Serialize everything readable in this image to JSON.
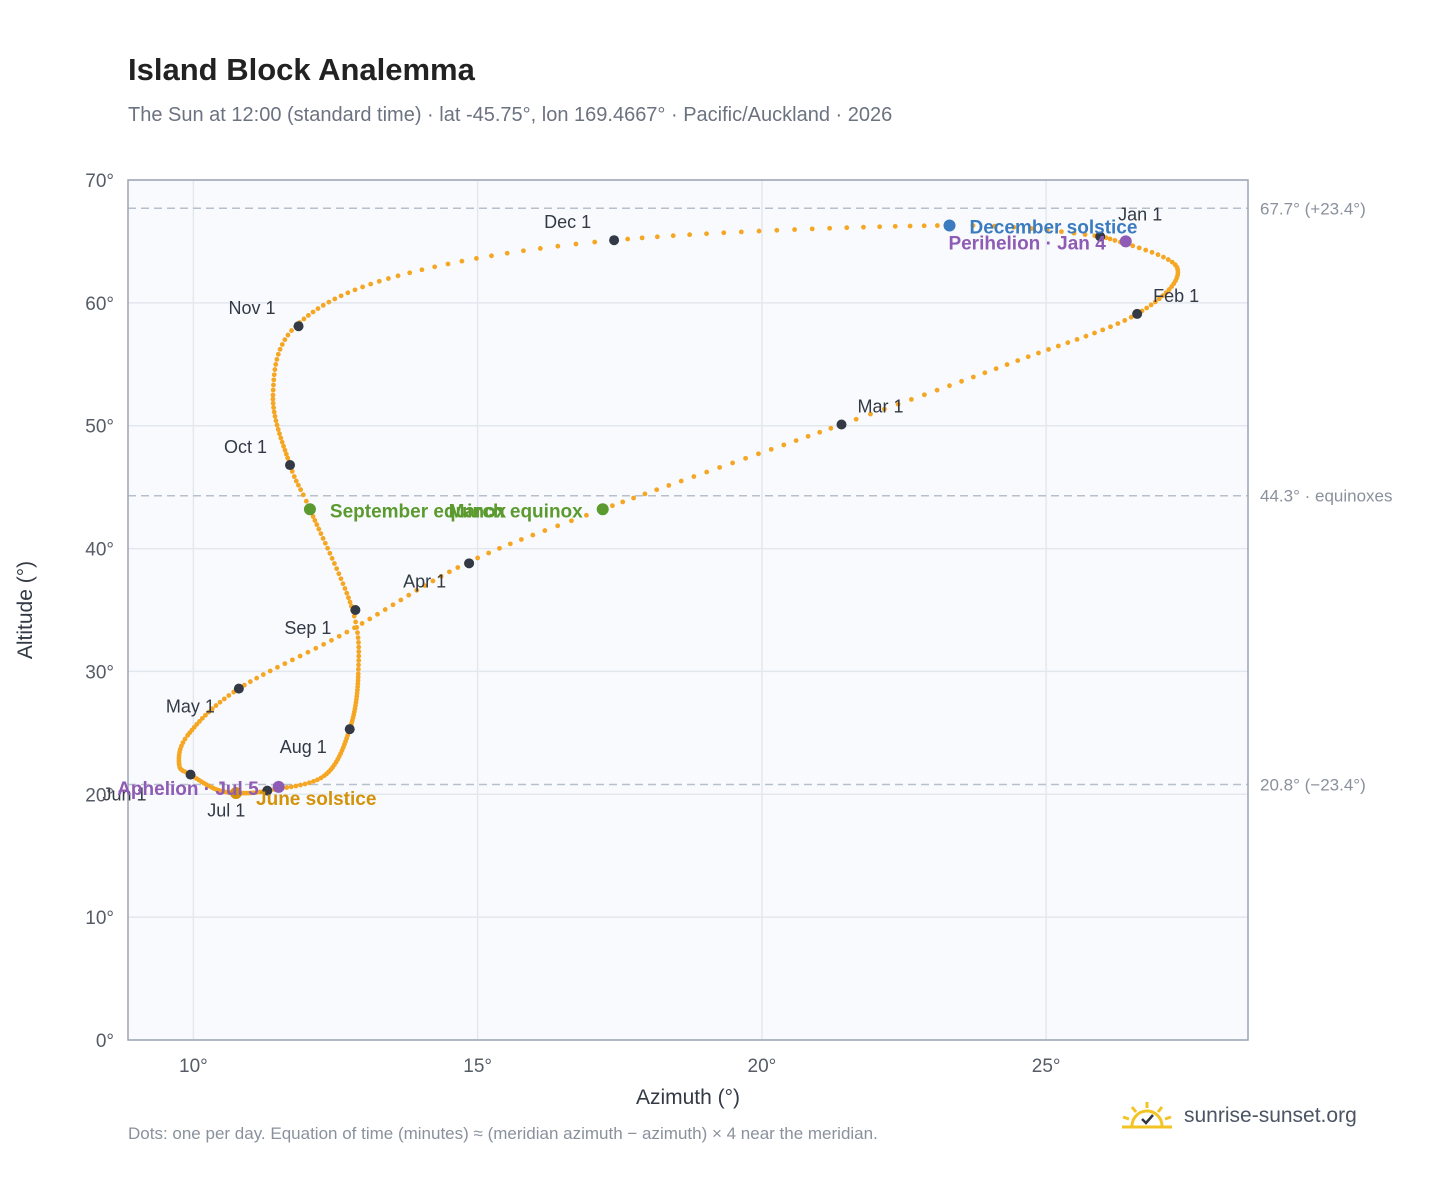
{
  "header": {
    "title": "Island Block Analemma",
    "subtitle": "The Sun at 12:00 (standard time) · lat -45.75°, lon 169.4667° · Pacific/Auckland · 2026"
  },
  "footer": {
    "note": "Dots: one per day. Equation of time (minutes) ≈ (meridian azimuth − azimuth) × 4 near the meridian.",
    "brand": "sunrise-sunset.org"
  },
  "colors": {
    "curve": "#f5a623",
    "month_marker": "#333a45",
    "december_solstice": "#3b7bbf",
    "june_solstice": "#d4920a",
    "equinox": "#5a9a2e",
    "apsis": "#8e5bb5",
    "reference_line": "#b7c0cc",
    "plot_background": "#f8fafd",
    "grid": "#e3e8ee"
  },
  "chart_data": {
    "type": "scatter",
    "title": "Island Block Analemma",
    "xlabel": "Azimuth (°)",
    "ylabel": "Altitude (°)",
    "xlim": [
      8.85,
      28.55
    ],
    "ylim": [
      0,
      70
    ],
    "x_ticks": [
      10,
      15,
      20,
      25
    ],
    "x_tick_labels": [
      "10°",
      "15°",
      "20°",
      "25°"
    ],
    "y_ticks": [
      0,
      10,
      20,
      30,
      40,
      50,
      60,
      70
    ],
    "y_tick_labels": [
      "0°",
      "10°",
      "20°",
      "30°",
      "40°",
      "50°",
      "60°",
      "70°"
    ],
    "grid": true,
    "series": [
      {
        "kind": "daily-curve",
        "anchors": [
          [
            0,
            26.0,
            65.4
          ],
          [
            15,
            27.3,
            62.9
          ],
          [
            31,
            26.6,
            59.1
          ],
          [
            45,
            24.5,
            55.3
          ],
          [
            59,
            21.4,
            50.1
          ],
          [
            79,
            17.2,
            43.2
          ],
          [
            90,
            14.8,
            38.8
          ],
          [
            105,
            12.7,
            33.2
          ],
          [
            120,
            10.8,
            28.6
          ],
          [
            135,
            9.9,
            24.8
          ],
          [
            145,
            9.75,
            22.4
          ],
          [
            151,
            9.95,
            21.6
          ],
          [
            162,
            10.4,
            20.4
          ],
          [
            171,
            10.8,
            20.1
          ],
          [
            181,
            11.3,
            20.3
          ],
          [
            195,
            12.3,
            21.5
          ],
          [
            212,
            12.75,
            25.3
          ],
          [
            230,
            12.9,
            29.8
          ],
          [
            243,
            12.8,
            35.0
          ],
          [
            265,
            12.05,
            43.2
          ],
          [
            273,
            11.7,
            46.8
          ],
          [
            290,
            11.4,
            52.5
          ],
          [
            304,
            11.8,
            58.1
          ],
          [
            320,
            13.6,
            62.2
          ],
          [
            334,
            17.4,
            65.1
          ],
          [
            355,
            23.3,
            66.3
          ],
          [
            365,
            26.0,
            65.4
          ]
        ]
      }
    ],
    "months": [
      {
        "label": "Jan 1",
        "az": 25.95,
        "alt": 65.4
      },
      {
        "label": "Feb 1",
        "az": 26.6,
        "alt": 59.1
      },
      {
        "label": "Mar 1",
        "az": 21.4,
        "alt": 50.1
      },
      {
        "label": "Apr 1",
        "az": 14.85,
        "alt": 38.8
      },
      {
        "label": "May 1",
        "az": 10.8,
        "alt": 28.6
      },
      {
        "label": "Jun 1",
        "az": 9.95,
        "alt": 21.6
      },
      {
        "label": "Jul 1",
        "az": 11.3,
        "alt": 20.3
      },
      {
        "label": "Aug 1",
        "az": 12.75,
        "alt": 25.3
      },
      {
        "label": "Sep 1",
        "az": 12.85,
        "alt": 35.0
      },
      {
        "label": "Oct 1",
        "az": 11.7,
        "alt": 46.8
      },
      {
        "label": "Nov 1",
        "az": 11.85,
        "alt": 58.1
      },
      {
        "label": "Dec 1",
        "az": 17.4,
        "alt": 65.1
      }
    ],
    "events": [
      {
        "label": "December solstice",
        "az": 23.3,
        "alt": 66.3,
        "color_key": "december_solstice"
      },
      {
        "label": "June solstice",
        "az": 10.75,
        "alt": 20.1,
        "color_key": "june_solstice"
      },
      {
        "label": "March equinox",
        "az": 17.2,
        "alt": 43.2,
        "color_key": "equinox"
      },
      {
        "label": "September equinox",
        "az": 12.05,
        "alt": 43.2,
        "color_key": "equinox"
      },
      {
        "label": "Perihelion · Jan 4",
        "az": 26.4,
        "alt": 65.0,
        "color_key": "apsis"
      },
      {
        "label": "Aphelion · Jul 5",
        "az": 11.5,
        "alt": 20.6,
        "color_key": "apsis"
      }
    ],
    "reference_lines": [
      {
        "alt": 67.7,
        "label": "67.7° (+23.4°)"
      },
      {
        "alt": 44.3,
        "label": "44.3° · equinoxes"
      },
      {
        "alt": 20.8,
        "label": "20.8° (−23.4°)"
      }
    ]
  }
}
